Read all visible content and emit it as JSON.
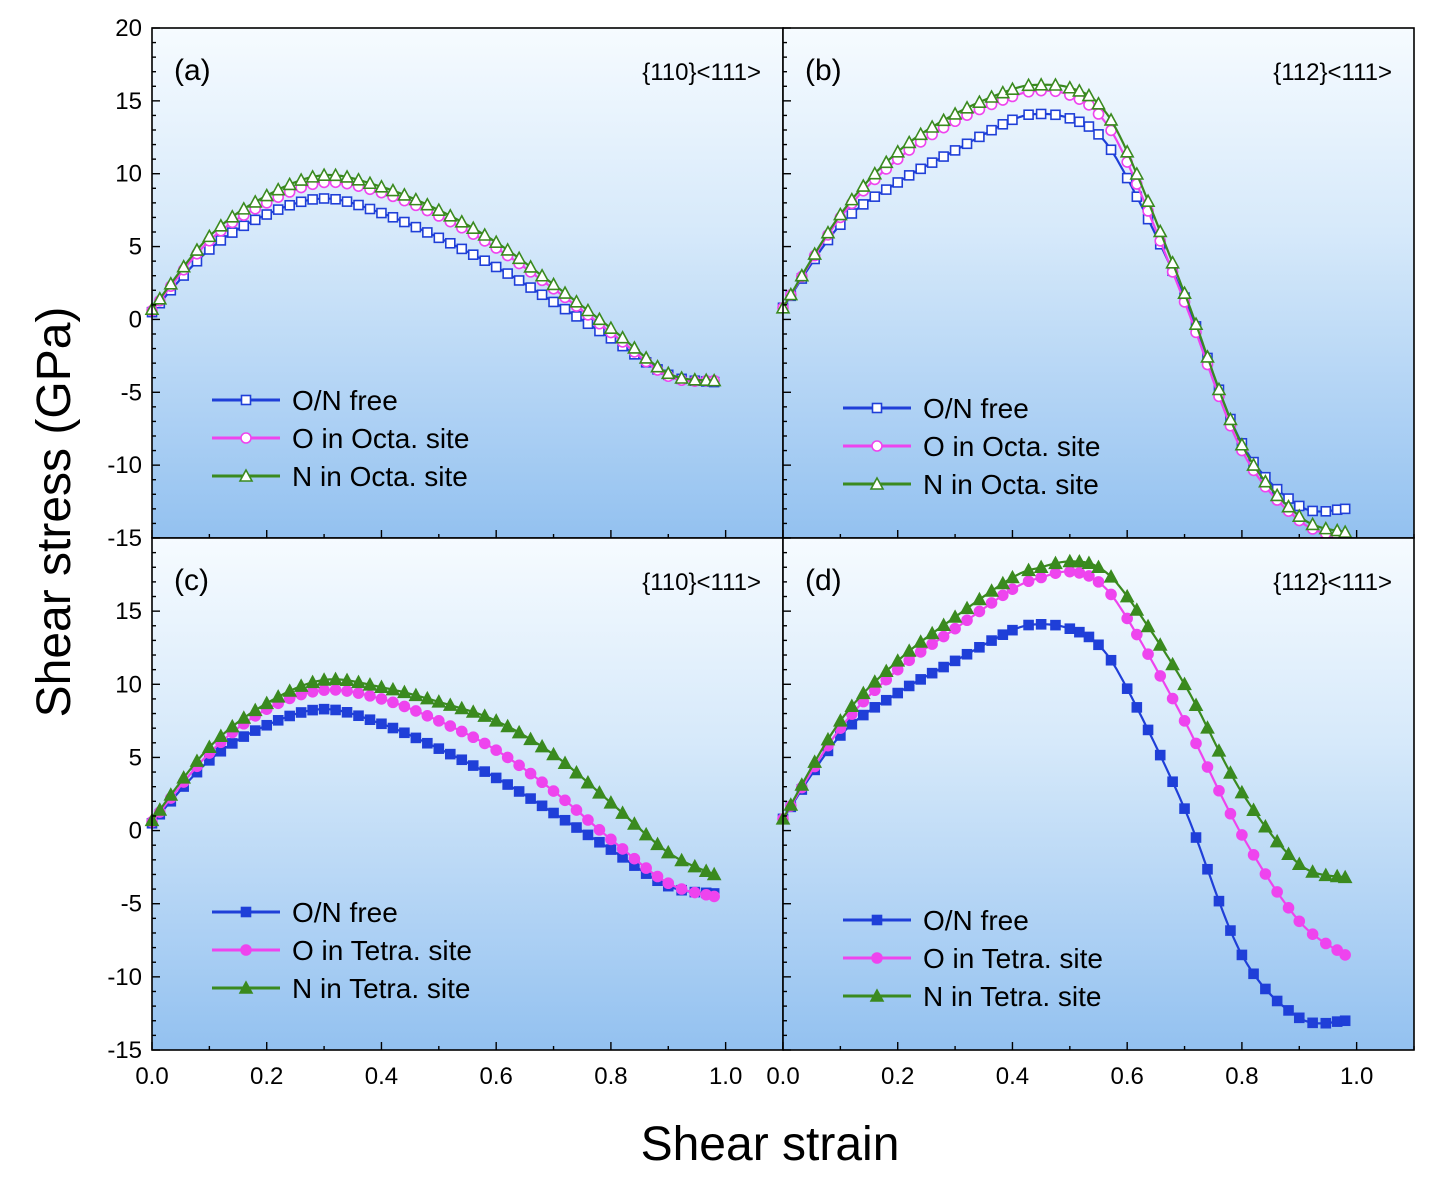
{
  "figure": {
    "xlabel": "Shear strain",
    "ylabel": "Shear stress (GPa)"
  },
  "chart_data": [
    {
      "type": "line",
      "panel": "(a)",
      "annotation": "{110}<111>",
      "xlim": [
        0.0,
        1.1
      ],
      "ylim": [
        -15,
        20
      ],
      "xticks": [
        "0.0",
        "0.2",
        "0.4",
        "0.6",
        "0.8",
        "1.0"
      ],
      "yticks": [
        "20",
        "15",
        "10",
        "5",
        "0",
        "-5",
        "-10",
        "-15"
      ],
      "legend_position": "bottom-left",
      "x": [
        0.0,
        0.1,
        0.2,
        0.3,
        0.4,
        0.5,
        0.6,
        0.7,
        0.8,
        0.9,
        0.98
      ],
      "series": [
        {
          "name": "O/N free",
          "color": "#1f3fd8",
          "marker": "square-open",
          "values": [
            0.5,
            4.8,
            7.2,
            8.3,
            7.3,
            5.6,
            3.6,
            1.2,
            -1.3,
            -3.8,
            -4.3
          ]
        },
        {
          "name": "O in Octa. site",
          "color": "#ee44ee",
          "marker": "circle-open",
          "values": [
            0.6,
            5.4,
            8.0,
            9.4,
            8.7,
            7.1,
            4.9,
            2.1,
            -0.9,
            -3.9,
            -4.2
          ]
        },
        {
          "name": "N in Octa. site",
          "color": "#3a8a1f",
          "marker": "triangle-open",
          "values": [
            0.7,
            5.7,
            8.5,
            9.9,
            9.1,
            7.5,
            5.3,
            2.4,
            -0.6,
            -3.7,
            -4.2
          ]
        }
      ]
    },
    {
      "type": "line",
      "panel": "(b)",
      "annotation": "{112}<111>",
      "xlim": [
        0.0,
        1.1
      ],
      "ylim": [
        -15,
        20
      ],
      "xticks": [
        "0.0",
        "0.2",
        "0.4",
        "0.6",
        "0.8",
        "1.0"
      ],
      "yticks": [],
      "legend_position": "bottom-left",
      "x": [
        0.0,
        0.1,
        0.2,
        0.3,
        0.4,
        0.45,
        0.5,
        0.55,
        0.6,
        0.7,
        0.8,
        0.9,
        0.98
      ],
      "series": [
        {
          "name": "O/N free",
          "color": "#1f3fd8",
          "marker": "square-open",
          "values": [
            0.8,
            6.5,
            9.4,
            11.6,
            13.7,
            14.1,
            13.8,
            12.7,
            9.7,
            1.5,
            -8.5,
            -12.8,
            -13.0
          ]
        },
        {
          "name": "O in Octa. site",
          "color": "#ee44ee",
          "marker": "circle-open",
          "values": [
            0.8,
            7.0,
            11.0,
            13.6,
            15.3,
            15.7,
            15.4,
            14.1,
            10.8,
            1.2,
            -9.0,
            -13.8,
            -15.0
          ]
        },
        {
          "name": "N in Octa. site",
          "color": "#3a8a1f",
          "marker": "triangle-open",
          "values": [
            0.8,
            7.2,
            11.5,
            14.1,
            15.8,
            16.1,
            15.9,
            14.8,
            11.5,
            1.8,
            -8.6,
            -13.5,
            -14.6
          ]
        }
      ]
    },
    {
      "type": "line",
      "panel": "(c)",
      "annotation": "{110}<111>",
      "xlim": [
        0.0,
        1.1
      ],
      "ylim": [
        -15,
        20
      ],
      "xticks": [
        "0.0",
        "0.2",
        "0.4",
        "0.6",
        "0.8",
        "1.0"
      ],
      "yticks": [
        "15",
        "10",
        "5",
        "0",
        "-5",
        "-10",
        "-15"
      ],
      "legend_position": "bottom-left",
      "x": [
        0.0,
        0.1,
        0.2,
        0.3,
        0.4,
        0.5,
        0.6,
        0.7,
        0.8,
        0.9,
        0.98
      ],
      "series": [
        {
          "name": "O/N free",
          "color": "#1f3fd8",
          "marker": "square-filled",
          "values": [
            0.5,
            4.8,
            7.2,
            8.3,
            7.3,
            5.6,
            3.6,
            1.2,
            -1.3,
            -3.8,
            -4.3
          ]
        },
        {
          "name": "O in Tetra. site",
          "color": "#ee44ee",
          "marker": "circle-filled",
          "values": [
            0.6,
            5.3,
            8.3,
            9.6,
            9.0,
            7.5,
            5.5,
            2.7,
            -0.6,
            -3.6,
            -4.5
          ]
        },
        {
          "name": "N in Tetra. site",
          "color": "#3a8a1f",
          "marker": "triangle-filled",
          "values": [
            0.7,
            5.7,
            8.7,
            10.3,
            9.8,
            8.8,
            7.5,
            5.2,
            1.9,
            -1.5,
            -3.0
          ]
        }
      ]
    },
    {
      "type": "line",
      "panel": "(d)",
      "annotation": "{112}<111>",
      "xlim": [
        0.0,
        1.1
      ],
      "ylim": [
        -15,
        20
      ],
      "xticks": [
        "0.0",
        "0.2",
        "0.4",
        "0.6",
        "0.8",
        "1.0"
      ],
      "yticks": [],
      "legend_position": "bottom-left",
      "x": [
        0.0,
        0.1,
        0.2,
        0.3,
        0.4,
        0.45,
        0.5,
        0.55,
        0.6,
        0.7,
        0.8,
        0.9,
        0.98
      ],
      "series": [
        {
          "name": "O/N free",
          "color": "#1f3fd8",
          "marker": "square-filled",
          "values": [
            0.8,
            6.5,
            9.4,
            11.6,
            13.7,
            14.1,
            13.8,
            12.7,
            9.7,
            1.5,
            -8.5,
            -12.8,
            -13.0
          ]
        },
        {
          "name": "O in Tetra. site",
          "color": "#ee44ee",
          "marker": "circle-filled",
          "values": [
            0.8,
            7.0,
            11.0,
            13.8,
            16.5,
            17.3,
            17.7,
            17.0,
            14.5,
            7.5,
            -0.3,
            -6.2,
            -8.5
          ]
        },
        {
          "name": "N in Tetra. site",
          "color": "#3a8a1f",
          "marker": "triangle-filled",
          "values": [
            0.8,
            7.5,
            11.6,
            14.6,
            17.3,
            18.0,
            18.4,
            18.0,
            16.0,
            10.0,
            2.6,
            -2.3,
            -3.2
          ]
        }
      ]
    }
  ]
}
